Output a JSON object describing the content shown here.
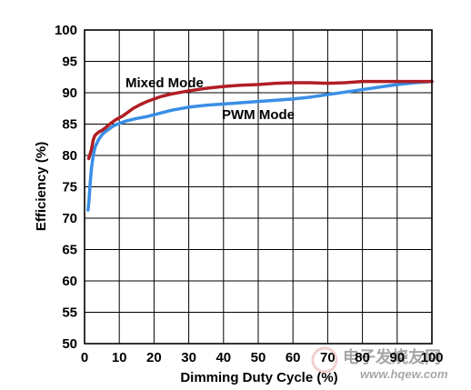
{
  "chart_data": {
    "type": "line",
    "xlabel": "Dimming Duty Cycle (%)",
    "ylabel": "Efficiency (%)",
    "xlim": [
      0,
      100
    ],
    "ylim": [
      50,
      100
    ],
    "x_ticks": [
      0,
      10,
      20,
      30,
      40,
      50,
      60,
      70,
      80,
      90,
      100
    ],
    "y_ticks": [
      50,
      55,
      60,
      65,
      70,
      75,
      80,
      85,
      90,
      95,
      100
    ],
    "grid": true,
    "series": [
      {
        "name": "Mixed Mode",
        "color": "#b01e24",
        "points": [
          [
            1.2,
            79.5
          ],
          [
            2.0,
            81.0
          ],
          [
            2.5,
            82.5
          ],
          [
            3.0,
            83.2
          ],
          [
            4.0,
            83.7
          ],
          [
            5.0,
            84.0
          ],
          [
            6.0,
            84.4
          ],
          [
            7.0,
            84.9
          ],
          [
            8.0,
            85.3
          ],
          [
            9.0,
            85.7
          ],
          [
            10.0,
            86.0
          ],
          [
            11.0,
            86.3
          ],
          [
            12.0,
            86.7
          ],
          [
            14.0,
            87.5
          ],
          [
            16.0,
            88.1
          ],
          [
            18.0,
            88.6
          ],
          [
            20.0,
            89.0
          ],
          [
            22.0,
            89.4
          ],
          [
            25.0,
            89.8
          ],
          [
            28.0,
            90.1
          ],
          [
            30.0,
            90.3
          ],
          [
            35.0,
            90.7
          ],
          [
            40.0,
            91.0
          ],
          [
            45.0,
            91.2
          ],
          [
            50.0,
            91.3
          ],
          [
            55.0,
            91.5
          ],
          [
            60.0,
            91.6
          ],
          [
            65.0,
            91.6
          ],
          [
            70.0,
            91.5
          ],
          [
            75.0,
            91.6
          ],
          [
            80.0,
            91.8
          ],
          [
            85.0,
            91.8
          ],
          [
            90.0,
            91.8
          ],
          [
            95.0,
            91.8
          ],
          [
            100.0,
            91.8
          ]
        ]
      },
      {
        "name": "PWM Mode",
        "color": "#3a8ee6",
        "points": [
          [
            1.0,
            71.3
          ],
          [
            1.3,
            73.0
          ],
          [
            1.6,
            75.5
          ],
          [
            2.0,
            78.0
          ],
          [
            2.5,
            80.0
          ],
          [
            3.0,
            81.3
          ],
          [
            4.0,
            82.5
          ],
          [
            5.0,
            83.3
          ],
          [
            6.0,
            83.8
          ],
          [
            7.0,
            84.2
          ],
          [
            8.0,
            84.6
          ],
          [
            9.0,
            84.9
          ],
          [
            10.0,
            85.1
          ],
          [
            12.0,
            85.5
          ],
          [
            15.0,
            85.9
          ],
          [
            18.0,
            86.2
          ],
          [
            20.0,
            86.5
          ],
          [
            25.0,
            87.2
          ],
          [
            30.0,
            87.7
          ],
          [
            35.0,
            88.0
          ],
          [
            40.0,
            88.2
          ],
          [
            45.0,
            88.4
          ],
          [
            50.0,
            88.6
          ],
          [
            55.0,
            88.8
          ],
          [
            60.0,
            89.0
          ],
          [
            65.0,
            89.3
          ],
          [
            70.0,
            89.7
          ],
          [
            75.0,
            90.1
          ],
          [
            80.0,
            90.5
          ],
          [
            85.0,
            90.9
          ],
          [
            90.0,
            91.3
          ],
          [
            95.0,
            91.6
          ],
          [
            100.0,
            91.8
          ]
        ]
      }
    ]
  },
  "watermark": {
    "text": "电子发烧友网",
    "url": "www.hqew.com"
  }
}
